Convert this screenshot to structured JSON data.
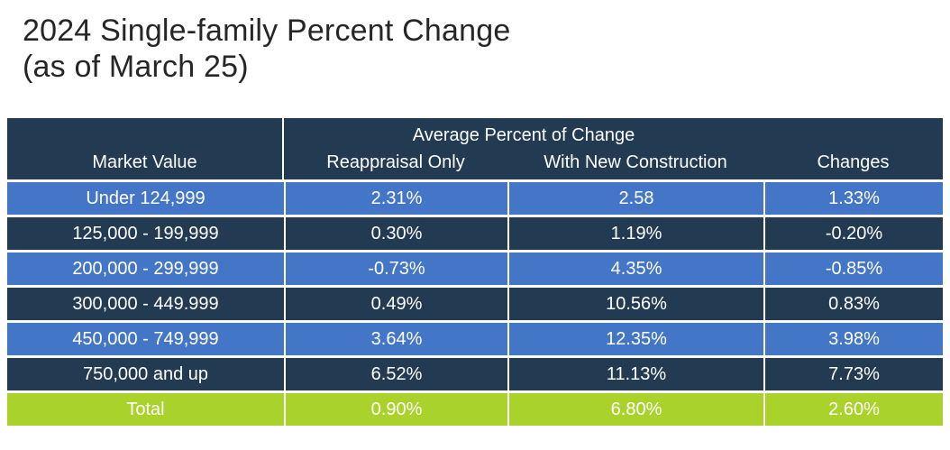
{
  "title": "2024 Single-family Percent Change",
  "subtitle": "(as of March 25)",
  "chart_data": {
    "type": "table",
    "title": "2024 Single-family Percent Change (as of March 25)",
    "group_header": "Average Percent of Change",
    "columns": [
      "Market Value",
      "Reappraisal Only",
      "With New Construction",
      "Changes"
    ],
    "rows": [
      [
        "Under 124,999",
        "2.31%",
        "2.58",
        "1.33%"
      ],
      [
        "125,000 - 199,999",
        "0.30%",
        "1.19%",
        "-0.20%"
      ],
      [
        "200,000 - 299,999",
        "-0.73%",
        "4.35%",
        "-0.85%"
      ],
      [
        "300,000 - 449.999",
        "0.49%",
        "10.56%",
        "0.83%"
      ],
      [
        "450,000 - 749,999",
        "3.64%",
        "12.35%",
        "3.98%"
      ],
      [
        "750,000 and up",
        "6.52%",
        "11.13%",
        "7.73%"
      ]
    ],
    "total": [
      "Total",
      "0.90%",
      "6.80%",
      "2.60%"
    ],
    "colors": {
      "header_bg": "#223A52",
      "row_blue": "#4476C7",
      "row_navy": "#223A52",
      "total_green": "#A9D32A",
      "table_text": "#FFFFFF",
      "title_text": "#262626",
      "divider": "#FFFFFF"
    },
    "layout": {
      "row_striping": "blue/navy alternating, green total row",
      "header_group_span": "columns 2-3"
    }
  }
}
